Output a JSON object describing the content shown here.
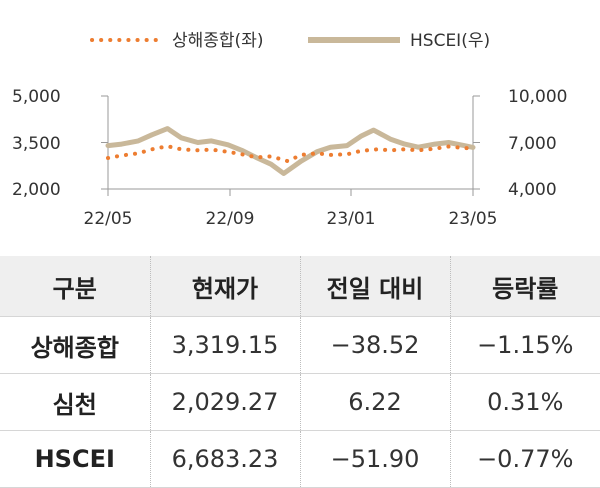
{
  "chart_data": {
    "type": "line",
    "legend": [
      {
        "label": "상해종합(좌)",
        "color": "#ed7d31",
        "style": "dotted"
      },
      {
        "label": "HSCEI(우)",
        "color": "#c9b89a",
        "style": "solid"
      }
    ],
    "x_tick_labels": [
      "22/05",
      "22/09",
      "23/01",
      "23/05"
    ],
    "x_range": [
      "2022-05-01",
      "2023-05-10"
    ],
    "y_left": {
      "ticks": [
        "2,000",
        "3,500",
        "5,000"
      ],
      "range": [
        2000,
        5000
      ]
    },
    "y_right": {
      "ticks": [
        "4,000",
        "7,000",
        "10,000"
      ],
      "range": [
        4000,
        10000
      ]
    },
    "grid": false,
    "legend_position": "top",
    "series": [
      {
        "name": "상해종합(좌)",
        "axis": "left",
        "points": [
          [
            "2022-05-01",
            3000
          ],
          [
            "2022-05-15",
            3080
          ],
          [
            "2022-06-01",
            3150
          ],
          [
            "2022-06-15",
            3280
          ],
          [
            "2022-07-01",
            3380
          ],
          [
            "2022-07-15",
            3280
          ],
          [
            "2022-08-01",
            3250
          ],
          [
            "2022-08-15",
            3270
          ],
          [
            "2022-09-01",
            3200
          ],
          [
            "2022-09-15",
            3120
          ],
          [
            "2022-10-01",
            3020
          ],
          [
            "2022-10-15",
            3050
          ],
          [
            "2022-11-01",
            2900
          ],
          [
            "2022-11-15",
            3100
          ],
          [
            "2022-12-01",
            3150
          ],
          [
            "2022-12-15",
            3100
          ],
          [
            "2023-01-01",
            3120
          ],
          [
            "2023-01-15",
            3230
          ],
          [
            "2023-02-01",
            3280
          ],
          [
            "2023-02-15",
            3250
          ],
          [
            "2023-03-01",
            3280
          ],
          [
            "2023-03-15",
            3250
          ],
          [
            "2023-04-01",
            3300
          ],
          [
            "2023-04-15",
            3370
          ],
          [
            "2023-05-01",
            3320
          ],
          [
            "2023-05-10",
            3319
          ]
        ]
      },
      {
        "name": "HSCEI(우)",
        "axis": "right",
        "points": [
          [
            "2022-05-01",
            6800
          ],
          [
            "2022-05-15",
            6900
          ],
          [
            "2022-06-01",
            7100
          ],
          [
            "2022-06-15",
            7500
          ],
          [
            "2022-07-01",
            7900
          ],
          [
            "2022-07-15",
            7300
          ],
          [
            "2022-08-01",
            7000
          ],
          [
            "2022-08-15",
            7100
          ],
          [
            "2022-09-01",
            6850
          ],
          [
            "2022-09-15",
            6500
          ],
          [
            "2022-10-01",
            6000
          ],
          [
            "2022-10-15",
            5600
          ],
          [
            "2022-10-28",
            5000
          ],
          [
            "2022-11-15",
            5800
          ],
          [
            "2022-12-01",
            6400
          ],
          [
            "2022-12-15",
            6700
          ],
          [
            "2023-01-01",
            6800
          ],
          [
            "2023-01-15",
            7400
          ],
          [
            "2023-01-28",
            7800
          ],
          [
            "2023-02-15",
            7200
          ],
          [
            "2023-03-01",
            6900
          ],
          [
            "2023-03-15",
            6700
          ],
          [
            "2023-04-01",
            6900
          ],
          [
            "2023-04-15",
            7000
          ],
          [
            "2023-05-01",
            6800
          ],
          [
            "2023-05-10",
            6683
          ]
        ]
      }
    ]
  },
  "table": {
    "headers": [
      "구분",
      "현재가",
      "전일 대비",
      "등락률"
    ],
    "rows": [
      {
        "name": "상해종합",
        "price": "3,319.15",
        "change": "−38.52",
        "rate": "−1.15%"
      },
      {
        "name": "심천",
        "price": "2,029.27",
        "change": "6.22",
        "rate": "0.31%"
      },
      {
        "name": "HSCEI",
        "price": "6,683.23",
        "change": "−51.90",
        "rate": "−0.77%"
      }
    ]
  }
}
